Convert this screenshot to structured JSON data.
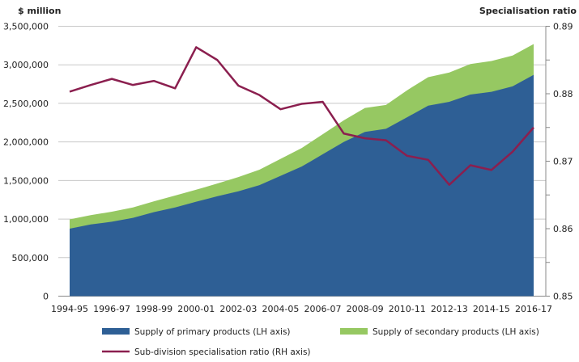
{
  "chart_data": {
    "type": "area+line",
    "left_axis_title": "$ million",
    "right_axis_title": "Specialisation ratio",
    "left_ylim": [
      0,
      3500000
    ],
    "left_ticks": [
      "0",
      "500,000",
      "1,000,000",
      "1,500,000",
      "2,000,000",
      "2,500,000",
      "3,000,000",
      "3,500,000"
    ],
    "right_ylim": [
      0.85,
      0.89
    ],
    "right_ticks": [
      "0.85",
      "0.86",
      "0.87",
      "0.88",
      "0.89"
    ],
    "grid": "horizontal",
    "legend_position": "bottom",
    "categories": [
      "1994-95",
      "1995-96",
      "1996-97",
      "1997-98",
      "1998-99",
      "1999-00",
      "2000-01",
      "2001-02",
      "2002-03",
      "2003-04",
      "2004-05",
      "2005-06",
      "2006-07",
      "2007-08",
      "2008-09",
      "2009-10",
      "2010-11",
      "2011-12",
      "2012-13",
      "2013-14",
      "2014-15",
      "2015-16",
      "2016-17"
    ],
    "x_tick_labels": [
      "1994-95",
      "1996-97",
      "1998-99",
      "2000-01",
      "2002-03",
      "2004-05",
      "2006-07",
      "2008-09",
      "2010-11",
      "2012-13",
      "2014-15",
      "2016-17"
    ],
    "series": [
      {
        "name": "Supply of primary products (LH axis)",
        "type": "stacked-area",
        "axis": "left",
        "color": "#2e5f95",
        "values": [
          875000,
          930000,
          965000,
          1015000,
          1090000,
          1150000,
          1225000,
          1295000,
          1360000,
          1440000,
          1560000,
          1680000,
          1840000,
          2000000,
          2130000,
          2170000,
          2320000,
          2470000,
          2520000,
          2615000,
          2650000,
          2720000,
          2870000
        ]
      },
      {
        "name": "Supply of secondary products (LH axis)",
        "type": "stacked-area",
        "axis": "left",
        "color": "#96c862",
        "values": [
          120000,
          120000,
          130000,
          135000,
          140000,
          155000,
          155000,
          165000,
          185000,
          200000,
          220000,
          240000,
          260000,
          280000,
          310000,
          310000,
          350000,
          370000,
          380000,
          395000,
          400000,
          400000,
          400000
        ]
      },
      {
        "name": "Sub-division specialisation ratio (RH axis)",
        "type": "line",
        "axis": "right",
        "color": "#8b1f4f",
        "values": [
          0.8803,
          0.8813,
          0.8822,
          0.8813,
          0.8819,
          0.8808,
          0.8869,
          0.885,
          0.8812,
          0.8798,
          0.8777,
          0.8785,
          0.8788,
          0.8741,
          0.8734,
          0.8731,
          0.8708,
          0.8702,
          0.8665,
          0.8694,
          0.8687,
          0.8714,
          0.875
        ]
      }
    ]
  }
}
